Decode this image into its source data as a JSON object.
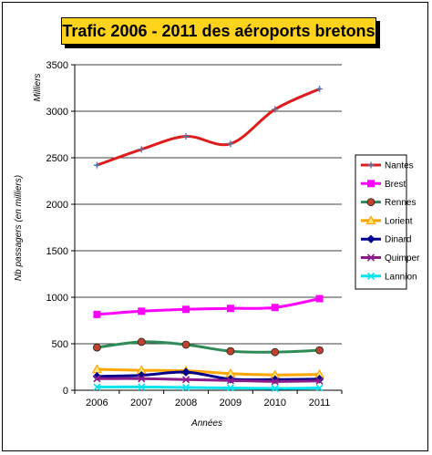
{
  "chart_data": {
    "type": "line",
    "title": "Trafic 2006 - 2011 des aéroports bretons",
    "ylabel": "Nb passagers  (en milliers)",
    "yunit": "Milliers",
    "xlabel": "Années",
    "x": [
      "2006",
      "2007",
      "2008",
      "2009",
      "2010",
      "2011"
    ],
    "ylim": [
      0,
      3500
    ],
    "yticks": [
      0,
      500,
      1000,
      1500,
      2000,
      2500,
      3000,
      3500
    ],
    "grid": "horizontal",
    "legend_position": "right",
    "series": [
      {
        "name": "Nantes",
        "color": "#e01b1b",
        "marker": "plus",
        "values": [
          2420,
          2590,
          2730,
          2650,
          3020,
          3240
        ]
      },
      {
        "name": "Brest",
        "color": "#ff00ff",
        "marker": "square",
        "values": [
          815,
          850,
          870,
          880,
          890,
          985
        ]
      },
      {
        "name": "Rennes",
        "color": "#2e8b57",
        "marker": "circle",
        "values": [
          460,
          520,
          490,
          420,
          410,
          430
        ]
      },
      {
        "name": "Lorient",
        "color": "#ffa500",
        "marker": "triangle",
        "values": [
          225,
          215,
          210,
          180,
          165,
          170
        ]
      },
      {
        "name": "Dinard",
        "color": "#00008b",
        "marker": "diamond",
        "values": [
          150,
          160,
          195,
          120,
          115,
          120
        ]
      },
      {
        "name": "Quimper",
        "color": "#8b1a8b",
        "marker": "cross",
        "values": [
          125,
          125,
          115,
          105,
          95,
          100
        ]
      },
      {
        "name": "Lannion",
        "color": "#00e5ee",
        "marker": "cross",
        "values": [
          35,
          35,
          30,
          25,
          20,
          25
        ]
      }
    ]
  }
}
